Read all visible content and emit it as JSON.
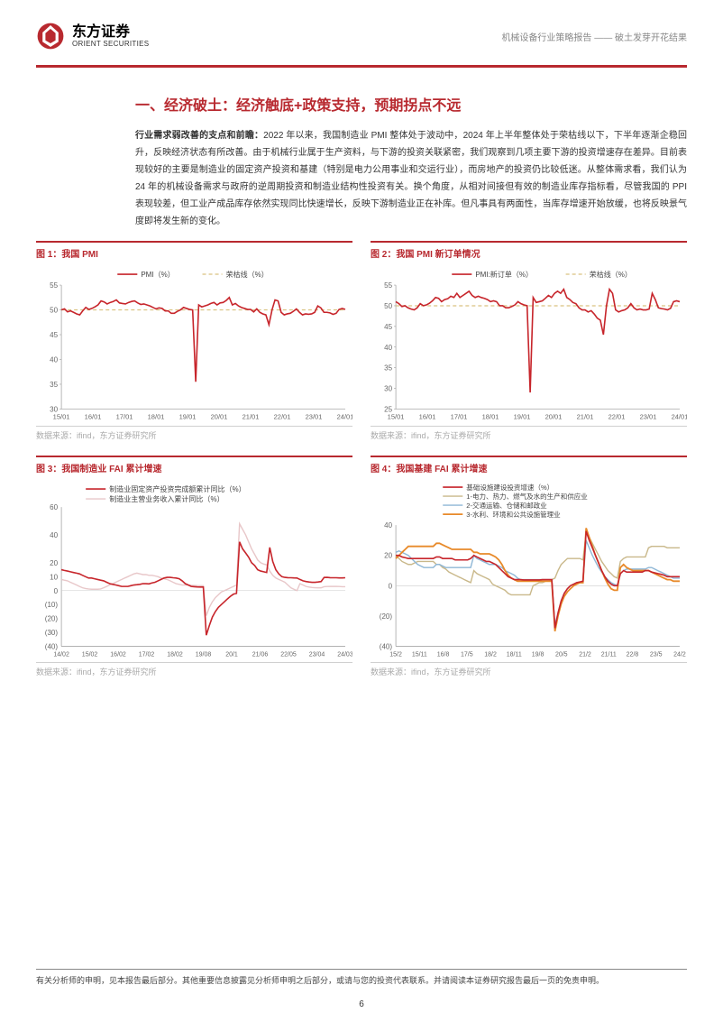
{
  "header": {
    "logo_cn": "东方证券",
    "logo_en": "ORIENT SECURITIES",
    "right": "机械设备行业策略报告 —— 破土发芽开花结果"
  },
  "section_title": "一、经济破土：经济触底+政策支持，预期拐点不远",
  "body_lead": "行业需求弱改善的支点和前瞻：",
  "body": "2022 年以来，我国制造业 PMI 整体处于波动中，2024 年上半年整体处于荣枯线以下，下半年逐渐企稳回升，反映经济状态有所改善。由于机械行业属于生产资料，与下游的投资关联紧密，我们观察到几项主要下游的投资增速存在差异。目前表现较好的主要是制造业的固定资产投资和基建（特别是电力公用事业和交运行业），而房地产的投资仍比较低迷。从整体需求看，我们认为 24 年的机械设备需求与政府的逆周期投资和制造业结构性投资有关。换个角度，从相对间接但有效的制造业库存指标看，尽管我国的 PPI 表现较差，但工业产成品库存依然实现同比快速增长，反映下游制造业正在补库。但凡事具有两面性，当库存增速开始放缓，也将反映景气度即将发生新的变化。",
  "charts": {
    "c1": {
      "title": "图 1：我国 PMI",
      "type": "line",
      "legend": [
        {
          "label": "PMI（%）",
          "color": "#c7252b",
          "style": "solid",
          "width": 1.6
        },
        {
          "label": "荣枯线（%）",
          "color": "#d9c280",
          "style": "4 3",
          "width": 1.2
        }
      ],
      "ylim": [
        30,
        55
      ],
      "yticks": [
        30,
        35,
        40,
        45,
        50,
        55
      ],
      "xticks": [
        "15/01",
        "16/01",
        "17/01",
        "18/01",
        "19/01",
        "20/01",
        "21/01",
        "22/01",
        "23/01",
        "24/01"
      ],
      "baseline": 50,
      "series_main": [
        50,
        50.2,
        49.6,
        49.8,
        49.5,
        49.2,
        49,
        49.8,
        50.5,
        50.1,
        50.3,
        50.6,
        51,
        51.8,
        51.6,
        51.2,
        51.5,
        51.7,
        52,
        51.4,
        51.3,
        51.2,
        51.5,
        51.7,
        51.8,
        51.4,
        51.1,
        51.2,
        51,
        50.8,
        50.5,
        50.2,
        50.4,
        50.3,
        49.8,
        49.8,
        49.3,
        49.3,
        49.7,
        50,
        50.5,
        50.3,
        50.1,
        50,
        35.5,
        51,
        50.6,
        50.8,
        51,
        51.3,
        51.5,
        51,
        51.4,
        51.5,
        51.9,
        52.5,
        51,
        51.3,
        50.8,
        50.5,
        50.3,
        50.1,
        50.1,
        49.6,
        50.2,
        49.5,
        49.2,
        49,
        47,
        50,
        52,
        51.8,
        49.5,
        49,
        49.2,
        49.3,
        49.7,
        50.2,
        49.5,
        49,
        49.2,
        49.1,
        49.2,
        49.5,
        50.8,
        50.4,
        49.5,
        49.5,
        49.4,
        49.1,
        49.3,
        50.1,
        50.3,
        50.1
      ],
      "source": "数据来源：ifind，东方证券研究所"
    },
    "c2": {
      "title": "图 2：我国 PMI 新订单情况",
      "type": "line",
      "legend": [
        {
          "label": "PMI:新订单（%）",
          "color": "#c7252b",
          "style": "solid",
          "width": 1.6
        },
        {
          "label": "荣枯线（%）",
          "color": "#d9c280",
          "style": "4 3",
          "width": 1.2
        }
      ],
      "ylim": [
        25,
        55
      ],
      "yticks": [
        25,
        30,
        35,
        40,
        45,
        50,
        55
      ],
      "xticks": [
        "15/01",
        "16/01",
        "17/01",
        "18/01",
        "19/01",
        "20/01",
        "21/01",
        "22/01",
        "23/01",
        "24/01"
      ],
      "baseline": 50,
      "series_main": [
        51,
        50.5,
        49.8,
        50,
        49.5,
        49.2,
        49,
        49.5,
        50.5,
        50,
        50.2,
        50.6,
        51.2,
        52,
        51.8,
        51,
        51.5,
        51.7,
        52.3,
        52,
        53,
        52,
        52.5,
        53,
        53.5,
        52.5,
        52,
        52.3,
        52,
        51.8,
        51.5,
        51,
        51.2,
        51,
        50,
        50,
        49.5,
        49.5,
        49.8,
        50.2,
        51,
        50.5,
        50.2,
        50,
        29,
        52,
        50.8,
        51,
        51.2,
        51.8,
        52.5,
        52,
        53,
        53.5,
        53,
        54,
        52,
        51.5,
        50.8,
        50.5,
        49.5,
        49,
        49,
        48.5,
        48.8,
        48,
        47,
        46.5,
        43,
        50,
        54,
        53,
        49,
        48.5,
        48.8,
        49,
        49.5,
        50.5,
        49.5,
        49,
        49.2,
        49,
        49,
        49.2,
        53,
        51.5,
        49.5,
        49.3,
        49.2,
        49,
        49.4,
        51,
        51.2,
        51
      ],
      "source": "数据来源：ifind，东方证券研究所"
    },
    "c3": {
      "title": "图 3：我国制造业 FAI 累计增速",
      "type": "line",
      "legend": [
        {
          "label": "制造业固定资产投资完成额累计同比（%）",
          "color": "#c7252b",
          "style": "solid",
          "width": 1.6
        },
        {
          "label": "制造业主营业务收入累计同比（%）",
          "color": "#e8c7c9",
          "style": "solid",
          "width": 1.4
        }
      ],
      "ylim": [
        -40,
        60
      ],
      "yticks": [
        -40,
        -30,
        -20,
        -10,
        0,
        10,
        20,
        40,
        60
      ],
      "ytick_labels": [
        "(40)",
        "(30)",
        "(20)",
        "(10)",
        "0",
        "10",
        "20",
        "40",
        "60"
      ],
      "xticks": [
        "14/02",
        "15/02",
        "16/02",
        "17/02",
        "18/02",
        "19/08",
        "20/1",
        "21/06",
        "22/05",
        "23/04",
        "24/03"
      ],
      "series_a": [
        15,
        14.5,
        14,
        13.5,
        13,
        12.5,
        12,
        11,
        10,
        9,
        9,
        8.5,
        8,
        7.5,
        7,
        6,
        5,
        4.5,
        4,
        3.5,
        3,
        3,
        3,
        3.5,
        4,
        4.2,
        4.5,
        5,
        5,
        4.8,
        5.5,
        6,
        7,
        8,
        9,
        9.5,
        9.5,
        9.2,
        9,
        8.5,
        7,
        5,
        4,
        3,
        2.8,
        2.6,
        2.5,
        2.5,
        -32,
        -25,
        -19,
        -15,
        -12,
        -10,
        -8,
        -6,
        -4,
        -2.5,
        -2,
        35,
        30,
        27,
        24,
        20,
        18,
        15,
        14,
        13.5,
        13,
        31,
        21,
        15,
        12,
        10,
        9.5,
        9.3,
        9.2,
        9.1,
        9,
        8,
        7,
        6.5,
        6.2,
        6,
        6,
        6.2,
        6.5,
        9.4,
        9.5,
        9.3,
        9.2,
        9.2,
        9.1,
        9.1,
        9.2
      ],
      "series_b": [
        8,
        7.5,
        7,
        6,
        5,
        4,
        3,
        2,
        1.5,
        1.2,
        1,
        1,
        1,
        1.2,
        2,
        3,
        4,
        5,
        6,
        7,
        8,
        9,
        10,
        11,
        12,
        12.5,
        12,
        11.5,
        11.5,
        11,
        11,
        10.5,
        10,
        9,
        8.5,
        8,
        7,
        6,
        5,
        4.5,
        4,
        4,
        4,
        3.8,
        3.7,
        3.6,
        3.5,
        3.5,
        -18,
        -12,
        -8,
        -5,
        -3,
        -1,
        0,
        1,
        2,
        3,
        4,
        48,
        44,
        40,
        35,
        30,
        26,
        22,
        20,
        19,
        18.5,
        14,
        11,
        9,
        8,
        7,
        6,
        4,
        2,
        1,
        0,
        5,
        4,
        3,
        2.5,
        2.2,
        2.1,
        2,
        2,
        2.8,
        2.9,
        3,
        3,
        3,
        2.9,
        2.8,
        2.8
      ],
      "source": "数据来源：ifind，东方证券研究所"
    },
    "c4": {
      "title": "图 4：我国基建 FAI 累计增速",
      "type": "line",
      "legend": [
        {
          "label": "基础设施建设投资增速（%）",
          "color": "#c7252b",
          "style": "solid",
          "width": 1.6
        },
        {
          "label": "1-电力、热力、燃气及水的生产和供应业",
          "color": "#c9b88a",
          "style": "solid",
          "width": 1.4
        },
        {
          "label": "2-交通运输、仓储和邮政业",
          "color": "#8fb7d6",
          "style": "solid",
          "width": 1.4
        },
        {
          "label": "3-水利、环境和公共设施管理业",
          "color": "#e88a2a",
          "style": "solid",
          "width": 1.8
        }
      ],
      "ylim": [
        -40,
        40
      ],
      "yticks": [
        -40,
        -20,
        0,
        20,
        40
      ],
      "ytick_labels": [
        "(40)",
        "(20)",
        "0",
        "20",
        "40"
      ],
      "xticks": [
        "15/2",
        "15/11",
        "16/8",
        "17/5",
        "18/2",
        "18/11",
        "19/8",
        "20/5",
        "21/2",
        "21/11",
        "22/8",
        "23/5",
        "24/2"
      ],
      "series_red": [
        20,
        20,
        19,
        18.5,
        18,
        18,
        18,
        18,
        18,
        18,
        18,
        18,
        18,
        19,
        19,
        18,
        18,
        18,
        18,
        17,
        17,
        17,
        17,
        17,
        18,
        20,
        19,
        18,
        17,
        16,
        16,
        15,
        14,
        12,
        10,
        8,
        6,
        5,
        4,
        4,
        4,
        3.8,
        3.8,
        3.8,
        3.8,
        3.8,
        3.8,
        4,
        4,
        4,
        4,
        -28,
        -18,
        -10,
        -5,
        -2,
        0,
        1,
        2,
        2.5,
        3,
        36,
        30,
        25,
        20,
        15,
        10,
        6,
        3,
        1,
        0,
        0,
        8,
        10,
        9,
        9,
        9,
        9,
        9,
        9,
        10,
        10,
        9,
        8.5,
        8,
        7.5,
        7,
        6,
        6,
        6,
        6,
        6
      ],
      "series_tan": [
        20,
        18,
        16,
        15,
        14,
        14,
        15,
        16,
        16,
        16,
        16,
        16,
        16,
        14,
        14,
        12,
        11,
        9,
        8,
        7,
        6,
        5,
        4,
        3,
        2,
        10,
        8,
        7,
        6,
        5,
        4,
        1,
        0,
        -1,
        -2,
        -3,
        -5,
        -6,
        -6,
        -6,
        -6,
        -6,
        -6,
        -6,
        0,
        1,
        2,
        2,
        3,
        3,
        4,
        5,
        10,
        14,
        16,
        18,
        18,
        18,
        18,
        18,
        17,
        35,
        32,
        28,
        24,
        20,
        16,
        13,
        10,
        8,
        6,
        5,
        16,
        18,
        19,
        19,
        19,
        19,
        19,
        19,
        19,
        25,
        26,
        26,
        26,
        26,
        26,
        25,
        25,
        25,
        25,
        25
      ],
      "series_blue": [
        22,
        23,
        22,
        21,
        20,
        18,
        16,
        14,
        13,
        12,
        12,
        12,
        12,
        14,
        14,
        13,
        12,
        12,
        12,
        12,
        12,
        12,
        12,
        12,
        12,
        20,
        18,
        17,
        16,
        15,
        14,
        14,
        14,
        13,
        12,
        10,
        9,
        8,
        7,
        5,
        4,
        4,
        4,
        4,
        4,
        4,
        4,
        4,
        4,
        4,
        4,
        -26,
        -18,
        -10,
        -5,
        -2,
        0,
        1,
        2,
        2,
        2,
        30,
        25,
        20,
        16,
        12,
        9,
        6,
        4,
        2,
        1,
        0,
        8,
        10,
        11,
        11,
        11,
        11,
        11,
        11,
        11,
        12,
        12,
        11,
        10,
        9,
        8,
        7,
        6,
        5,
        5,
        5
      ],
      "series_orange": [
        18,
        20,
        22,
        24,
        26,
        26,
        26,
        26,
        26,
        26,
        26,
        26,
        26,
        28,
        28,
        27,
        26,
        25,
        24,
        24,
        24,
        24,
        24,
        24,
        24,
        22,
        22,
        21,
        21,
        21,
        21,
        20,
        19,
        17,
        14,
        10,
        7,
        5,
        4,
        3,
        3,
        3,
        3,
        3,
        3,
        3,
        3,
        3,
        3,
        3,
        3,
        -30,
        -20,
        -12,
        -7,
        -4,
        -2,
        0,
        1,
        2,
        2,
        38,
        32,
        26,
        20,
        15,
        10,
        5,
        1,
        -2,
        -3,
        -3,
        12,
        14,
        12,
        11,
        10,
        10,
        10,
        10,
        10,
        10,
        9,
        8,
        7,
        6,
        5,
        4,
        4,
        3,
        3,
        3
      ],
      "source": "数据来源：ifind，东方证券研究所"
    }
  },
  "footer": "有关分析师的申明，见本报告最后部分。其他重要信息披露见分析师申明之后部分，或请与您的投资代表联系。并请阅读本证券研究报告最后一页的免责申明。",
  "page_num": "6",
  "brand_red": "#b8292f",
  "chart_red": "#c7252b"
}
